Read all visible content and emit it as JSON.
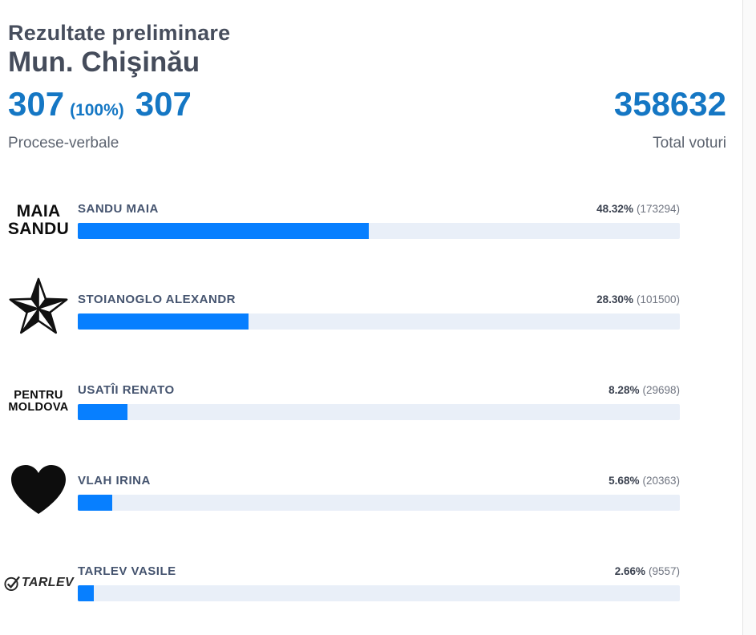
{
  "header": {
    "title_line1": "Rezultate preliminare",
    "title_line2": "Mun. Chişinău",
    "stations_processed": "307",
    "stations_percent": "(100%)",
    "stations_total": "307",
    "stations_label": "Procese-verbale",
    "total_votes": "358632",
    "total_votes_label": "Total voturi"
  },
  "candidates": [
    {
      "name": "SANDU MAIA",
      "percent": "48.32%",
      "percent_value": 48.32,
      "votes_display": "(173294)",
      "logo": {
        "type": "text",
        "lines": [
          "MAIA",
          "SANDU"
        ],
        "icon_name": "maia-sandu-logo"
      }
    },
    {
      "name": "STOIANOGLO ALEXANDR",
      "percent": "28.30%",
      "percent_value": 28.3,
      "votes_display": "(101500)",
      "logo": {
        "type": "star",
        "icon_name": "star-icon"
      }
    },
    {
      "name": "USATÎI RENATO",
      "percent": "8.28%",
      "percent_value": 8.28,
      "votes_display": "(29698)",
      "logo": {
        "type": "text",
        "lines": [
          "PENTRU",
          "MOLDOVA"
        ],
        "icon_name": "pentru-moldova-logo"
      }
    },
    {
      "name": "VLAH IRINA",
      "percent": "5.68%",
      "percent_value": 5.68,
      "votes_display": "(20363)",
      "logo": {
        "type": "heart",
        "icon_name": "heart-icon"
      }
    },
    {
      "name": "TARLEV VASILE",
      "percent": "2.66%",
      "percent_value": 2.66,
      "votes_display": "(9557)",
      "logo": {
        "type": "check-text",
        "text": "TARLEV",
        "icon_name": "tarlev-check-logo"
      }
    }
  ],
  "colors": {
    "accent_blue": "#1577c4",
    "bar_fill": "#077fff",
    "bar_track": "#e9eff8",
    "title_dark": "#474e5d",
    "label_gray": "#5d6470",
    "name_slate": "#45546f",
    "logo_black": "#0d0d0d"
  },
  "chart_data": {
    "type": "bar",
    "orientation": "horizontal",
    "title": "Rezultate preliminare Mun. Chişinău",
    "categories": [
      "SANDU MAIA",
      "STOIANOGLO ALEXANDR",
      "USATÎI RENATO",
      "VLAH IRINA",
      "TARLEV VASILE"
    ],
    "values": [
      48.32,
      28.3,
      8.28,
      5.68,
      2.66
    ],
    "votes": [
      173294,
      101500,
      29698,
      20363,
      9557
    ],
    "xlabel": "",
    "ylabel": "",
    "xlim": [
      0,
      100
    ],
    "total_votes": 358632,
    "protocols_processed": 307,
    "protocols_total": 307,
    "protocols_processed_percent": 100,
    "grid": false,
    "legend": false
  }
}
